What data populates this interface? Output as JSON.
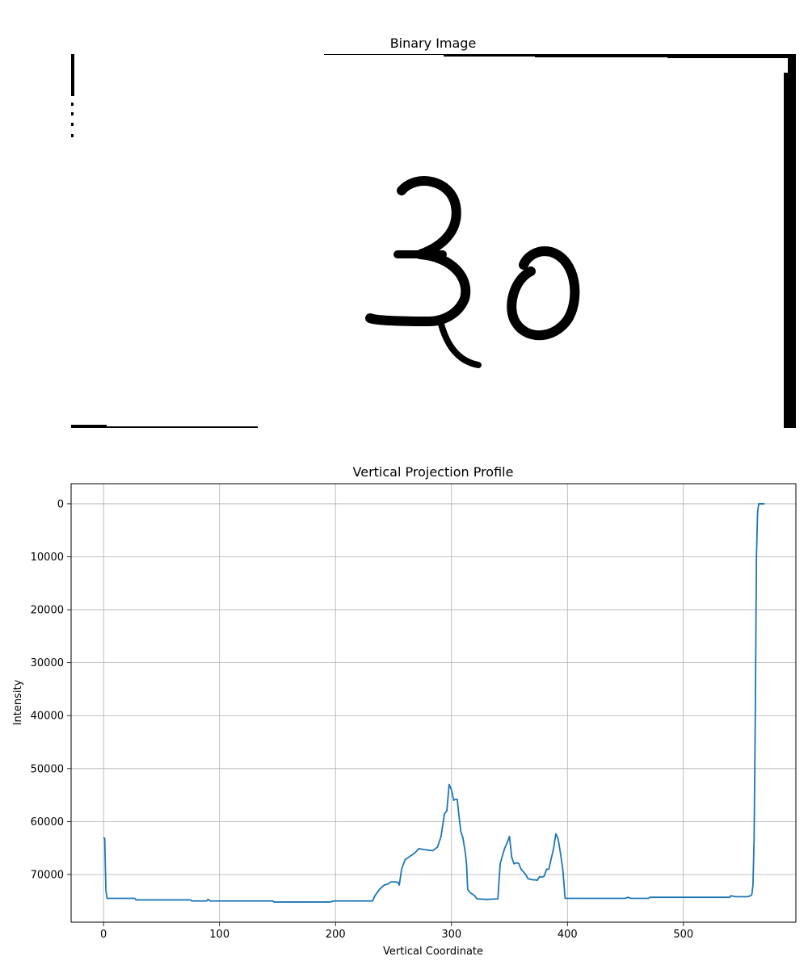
{
  "colors": {
    "line": "#1f77b4",
    "grid": "#b0b0b0",
    "ink": "#000000",
    "background": "#ffffff"
  },
  "chart_data": [
    {
      "type": "image",
      "title": "Binary Image",
      "content": "30"
    },
    {
      "type": "line",
      "title": "Vertical Projection Profile",
      "xlabel": "Vertical Coordinate",
      "ylabel": "Intensity",
      "xlim": [
        -28,
        597
      ],
      "ylim": [
        79000,
        -3800
      ],
      "y_inverted": true,
      "grid": true,
      "x_ticks": [
        0,
        100,
        200,
        300,
        400,
        500
      ],
      "y_ticks": [
        0,
        10000,
        20000,
        30000,
        40000,
        50000,
        60000,
        70000
      ],
      "series": [
        {
          "x": [
            0,
            1,
            2,
            3,
            5,
            10,
            20,
            27,
            28,
            50,
            75,
            76,
            89,
            90,
            91,
            92,
            100,
            120,
            146,
            147,
            170,
            195,
            199,
            200,
            220,
            232,
            234,
            238,
            242,
            245,
            248,
            252,
            254,
            255,
            257,
            260,
            264,
            268,
            272,
            276,
            280,
            284,
            288,
            291,
            294,
            296,
            298,
            300,
            302,
            303,
            305,
            306,
            308,
            310,
            312,
            313,
            314,
            316,
            320,
            322,
            330,
            340,
            342,
            344,
            346,
            348,
            350,
            352,
            354,
            356,
            358,
            360,
            362,
            364,
            366,
            368,
            370,
            372,
            374,
            376,
            378,
            380,
            382,
            384,
            386,
            388,
            390,
            392,
            394,
            396,
            398,
            400,
            401,
            410,
            450,
            452,
            455,
            470,
            471,
            500,
            540,
            541,
            545,
            555,
            558,
            559,
            560,
            561,
            562,
            563,
            564,
            565,
            566,
            567,
            568,
            570
          ],
          "y": [
            63000,
            63200,
            73000,
            74500,
            74500,
            74500,
            74500,
            74500,
            74800,
            74800,
            74800,
            75000,
            75000,
            74700,
            74800,
            75000,
            75000,
            75000,
            75000,
            75200,
            75200,
            75200,
            75000,
            75000,
            75000,
            75000,
            74000,
            72800,
            72000,
            71800,
            71400,
            71400,
            71500,
            72000,
            69000,
            67200,
            66600,
            66000,
            65100,
            65300,
            65400,
            65500,
            64800,
            62800,
            58500,
            58000,
            53000,
            54000,
            56000,
            55800,
            55800,
            58000,
            61800,
            63200,
            66000,
            68000,
            72800,
            73400,
            74000,
            74600,
            74700,
            74600,
            68000,
            66400,
            65000,
            64000,
            62800,
            66800,
            68000,
            67800,
            67900,
            69000,
            69500,
            70000,
            70800,
            70900,
            71000,
            71000,
            71100,
            70400,
            70500,
            70300,
            69000,
            69000,
            67000,
            65200,
            62300,
            63300,
            66000,
            69000,
            74500,
            74500,
            74500,
            74500,
            74500,
            74300,
            74500,
            74500,
            74300,
            74300,
            74300,
            74000,
            74200,
            74200,
            74000,
            73800,
            72000,
            63000,
            40000,
            10000,
            1500,
            0,
            0,
            0,
            0,
            0
          ]
        }
      ]
    }
  ]
}
